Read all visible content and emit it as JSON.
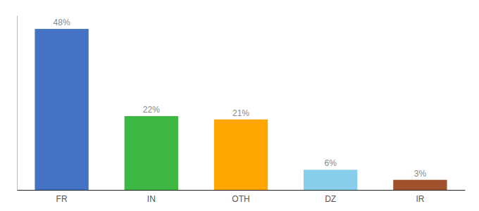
{
  "chart_data": {
    "type": "bar",
    "categories": [
      "FR",
      "IN",
      "OTH",
      "DZ",
      "IR"
    ],
    "values": [
      48,
      22,
      21,
      6,
      3
    ],
    "value_labels": [
      "48%",
      "22%",
      "21%",
      "6%",
      "3%"
    ],
    "colors": [
      "#4472C4",
      "#3CB843",
      "#FFA500",
      "#87CEEB",
      "#A0522D"
    ],
    "ylim": [
      0,
      52
    ],
    "data_labels": true,
    "tick_labels": "x",
    "grid": false
  }
}
